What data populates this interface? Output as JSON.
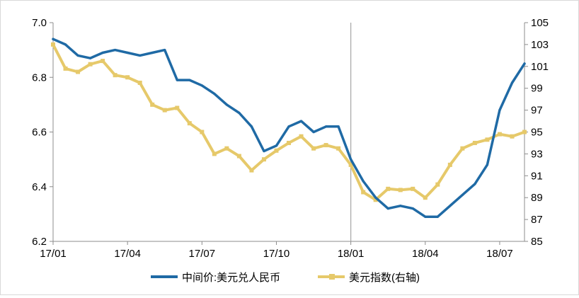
{
  "chart_data": {
    "type": "line",
    "title": "",
    "x": [
      "17/01",
      "17/02",
      "17/03",
      "17/04",
      "17/05",
      "17/06",
      "17/07",
      "17/08",
      "17/09",
      "17/10",
      "17/11",
      "17/12",
      "18/01",
      "18/02",
      "18/03",
      "18/04",
      "18/05",
      "18/06",
      "18/07",
      "18/08"
    ],
    "x_ticks": [
      "17/01",
      "17/04",
      "17/07",
      "17/10",
      "18/01",
      "18/04",
      "18/07"
    ],
    "y_left": {
      "ylim": [
        6.2,
        7.0
      ],
      "ticks": [
        "6.2",
        "6.4",
        "6.6",
        "6.8",
        "7.0"
      ]
    },
    "y_right": {
      "ylim": [
        85,
        105
      ],
      "ticks": [
        "85",
        "87",
        "89",
        "91",
        "93",
        "95",
        "97",
        "99",
        "101",
        "103",
        "105"
      ]
    },
    "vertical_marker": "18/01",
    "grid": false,
    "legend_position": "bottom",
    "series": [
      {
        "name": "中间价:美元兑人民币",
        "axis": "left",
        "color": "#1f6aa5",
        "x": [
          "17/01",
          "17/01",
          "17/02",
          "17/02",
          "17/03",
          "17/03",
          "17/04",
          "17/04",
          "17/05",
          "17/05",
          "17/06",
          "17/06",
          "17/07",
          "17/07",
          "17/08",
          "17/08",
          "17/09",
          "17/09",
          "17/10",
          "17/10",
          "17/11",
          "17/11",
          "17/12",
          "17/12",
          "18/01",
          "18/01",
          "18/02",
          "18/02",
          "18/03",
          "18/03",
          "18/04",
          "18/04",
          "18/05",
          "18/05",
          "18/06",
          "18/06",
          "18/07",
          "18/07",
          "18/08"
        ],
        "values": [
          6.94,
          6.92,
          6.88,
          6.87,
          6.89,
          6.9,
          6.89,
          6.88,
          6.89,
          6.9,
          6.79,
          6.79,
          6.77,
          6.74,
          6.7,
          6.67,
          6.62,
          6.53,
          6.55,
          6.62,
          6.64,
          6.6,
          6.62,
          6.62,
          6.5,
          6.42,
          6.36,
          6.32,
          6.33,
          6.32,
          6.29,
          6.29,
          6.33,
          6.37,
          6.41,
          6.48,
          6.68,
          6.78,
          6.85
        ]
      },
      {
        "name": "美元指数(右轴)",
        "axis": "right",
        "color": "#e6c96a",
        "x": [
          "17/01",
          "17/01",
          "17/02",
          "17/02",
          "17/03",
          "17/03",
          "17/04",
          "17/04",
          "17/05",
          "17/05",
          "17/06",
          "17/06",
          "17/07",
          "17/07",
          "17/08",
          "17/08",
          "17/09",
          "17/09",
          "17/10",
          "17/10",
          "17/11",
          "17/11",
          "17/12",
          "17/12",
          "18/01",
          "18/01",
          "18/02",
          "18/02",
          "18/03",
          "18/03",
          "18/04",
          "18/04",
          "18/05",
          "18/05",
          "18/06",
          "18/06",
          "18/07",
          "18/07",
          "18/08"
        ],
        "values": [
          103.0,
          100.8,
          100.5,
          101.2,
          101.5,
          100.2,
          100.0,
          99.5,
          97.5,
          97.0,
          97.2,
          95.8,
          95.0,
          93.0,
          93.5,
          92.8,
          91.5,
          92.5,
          93.3,
          94.0,
          94.6,
          93.5,
          93.8,
          93.5,
          92.0,
          89.5,
          88.8,
          89.8,
          89.7,
          89.8,
          89.0,
          90.2,
          92.0,
          93.5,
          94.0,
          94.3,
          94.8,
          94.6,
          95.0
        ]
      }
    ]
  }
}
